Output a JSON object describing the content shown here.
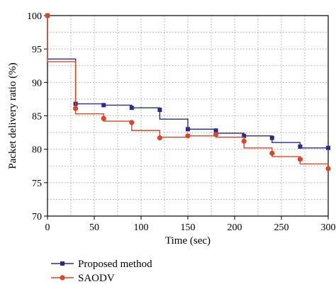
{
  "chart_data": {
    "type": "line",
    "xlabel": "Time (sec)",
    "ylabel": "Packet delivery ratio (%)",
    "xlim": [
      0,
      300
    ],
    "ylim": [
      70,
      100
    ],
    "xticks": [
      0,
      50,
      100,
      150,
      200,
      250,
      300
    ],
    "yticks": [
      70,
      75,
      80,
      85,
      90,
      95,
      100
    ],
    "grid": true,
    "step": true,
    "legend_position": "bottom-left",
    "series": [
      {
        "name": "Proposed method",
        "color": "#2b2b8c",
        "marker": "square",
        "x": [
          0,
          30,
          60,
          90,
          120,
          150,
          180,
          210,
          240,
          270,
          300
        ],
        "y": [
          100,
          86.8,
          86.6,
          86.2,
          85.9,
          83.0,
          82.8,
          82.0,
          81.7,
          80.4,
          80.2
        ],
        "step_levels": [
          93.5,
          86.8,
          86.6,
          86.2,
          84.5,
          83.0,
          82.4,
          82.0,
          81.0,
          80.2
        ]
      },
      {
        "name": "SAODV",
        "color": "#d9472b",
        "marker": "circle",
        "x": [
          0,
          30,
          60,
          90,
          120,
          150,
          180,
          210,
          240,
          270,
          300
        ],
        "y": [
          100,
          86.1,
          84.6,
          84.0,
          81.7,
          82.0,
          82.2,
          81.2,
          79.4,
          78.5,
          77.1
        ],
        "step_levels": [
          93.1,
          85.3,
          84.2,
          82.8,
          81.8,
          82.0,
          81.8,
          80.2,
          78.9,
          77.8
        ]
      }
    ]
  }
}
